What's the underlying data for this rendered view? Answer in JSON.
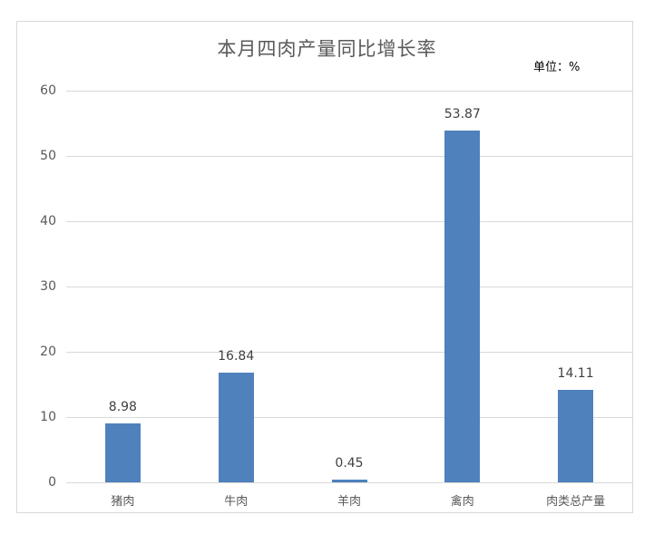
{
  "chart_data": {
    "type": "bar",
    "title": "本月四肉产量同比增长率",
    "unit_label": "单位：%",
    "xlabel": "",
    "ylabel": "",
    "categories": [
      "猪肉",
      "牛肉",
      "羊肉",
      "禽肉",
      "肉类总产量"
    ],
    "values": [
      8.98,
      16.84,
      0.45,
      53.87,
      14.11
    ],
    "value_labels": [
      "8.98",
      "16.84",
      "0.45",
      "53.87",
      "14.11"
    ],
    "ylim": [
      0,
      60
    ],
    "yticks": [
      "0",
      "10",
      "20",
      "30",
      "40",
      "50",
      "60"
    ],
    "grid": true,
    "legend": null,
    "bar_color": "#4f81bd"
  }
}
